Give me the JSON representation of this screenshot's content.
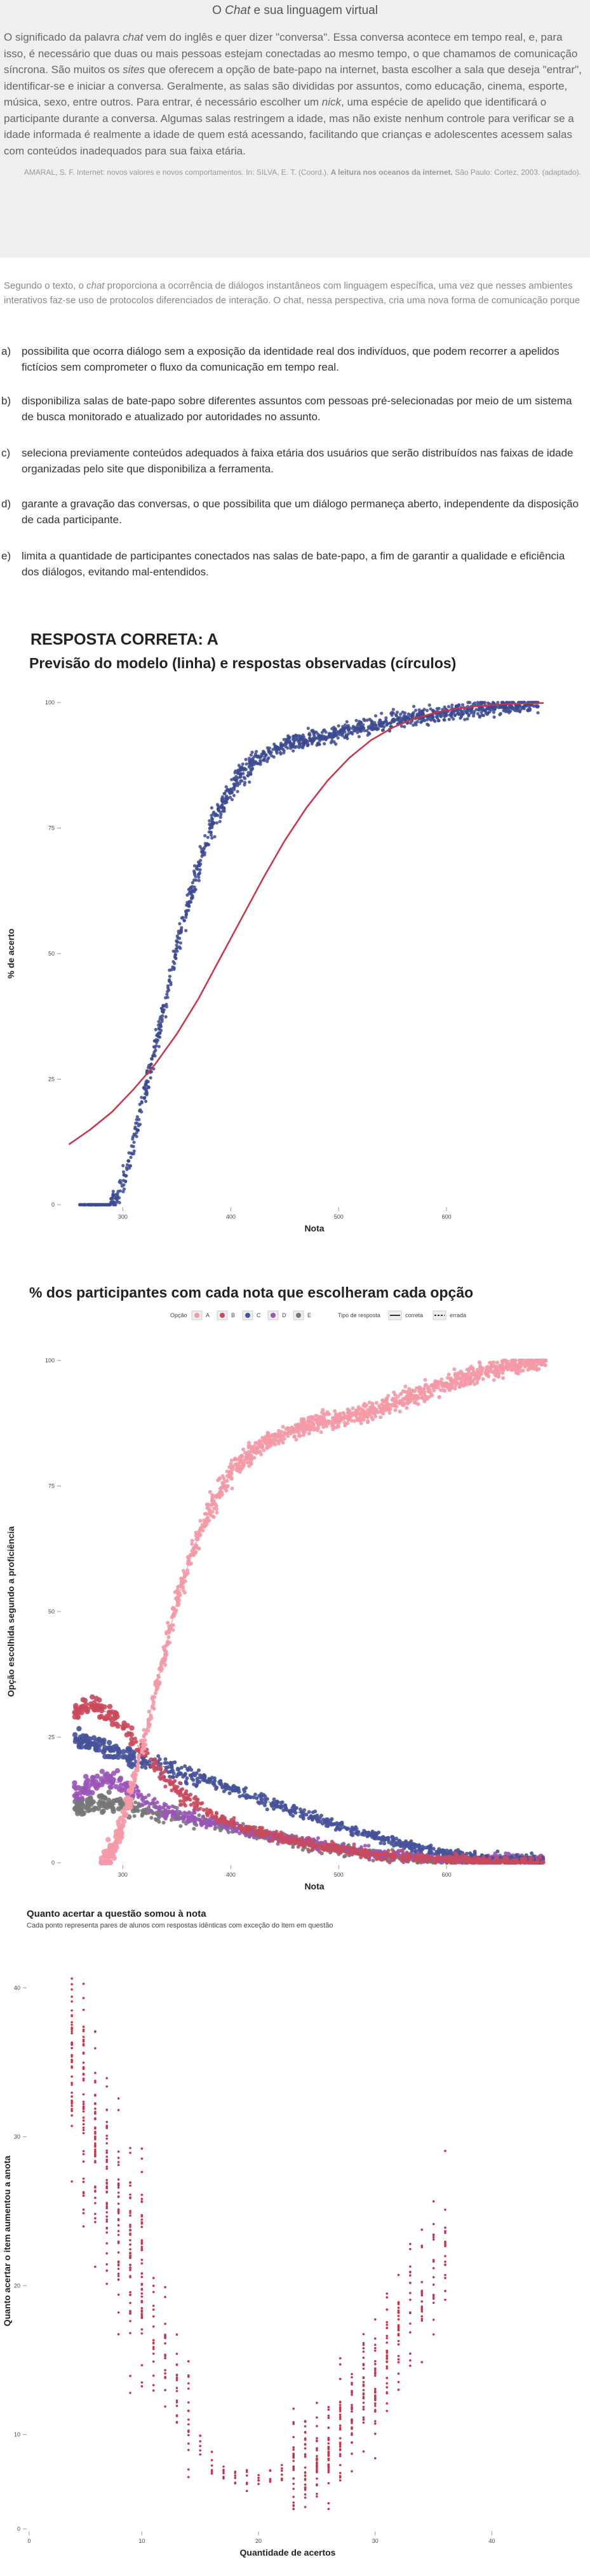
{
  "text_box": {
    "title_pre": "O ",
    "title_em": "Chat",
    "title_post": " e sua linguagem virtual",
    "paragraph": [
      {
        "t": "O significado da palavra "
      },
      {
        "t": "chat",
        "i": true
      },
      {
        "t": " vem do inglês e quer dizer \"conversa\". Essa conversa acontece em tempo real, e, para isso, é necessário que duas ou mais pessoas estejam conectadas ao mesmo tempo, o que chamamos de comunicação síncrona. São muitos os "
      },
      {
        "t": "sites",
        "i": true
      },
      {
        "t": " que oferecem a opção de bate-papo na internet, basta escolher a sala que deseja \"entrar\", identificar-se e iniciar a conversa. Geralmente, as salas são divididas por assuntos, como educação, cinema, esporte, música, sexo, entre outros. Para entrar, é necessário escolher um "
      },
      {
        "t": "nick",
        "i": true
      },
      {
        "t": ", uma espécie de apelido que identificará o participante durante a conversa. Algumas salas restringem a idade, mas não existe nenhum controle para verificar se a idade informada é realmente a idade de quem está acessando, facilitando que crianças e adolescentes acessem salas com conteúdos inadequados para sua faixa etária."
      }
    ],
    "source_pre": "AMARAL, S. F. Internet: novos valores e novos comportamentos. In: SILVA, E. T. (Coord.). ",
    "source_bold": "A leitura nos oceanos da internet.",
    "source_post": " São Paulo: Cortez, 2003. (adaptado)."
  },
  "question": {
    "stem_parts": [
      {
        "t": "Segundo o texto, o "
      },
      {
        "t": "chat",
        "i": true
      },
      {
        "t": " proporciona a ocorrência de diálogos instantâneos com linguagem específica, uma vez que nesses ambientes interativos faz-se uso de protocolos diferenciados de interação. O chat, nessa perspectiva, cria uma nova forma de comunicação porque"
      }
    ],
    "options": [
      {
        "letter": "a)",
        "text": "possibilita que ocorra diálogo sem a exposição da identidade real dos indivíduos, que podem recorrer a apelidos fictícios sem comprometer o fluxo da comunicação em tempo real."
      },
      {
        "letter": "b)",
        "text": "disponibiliza salas de bate-papo sobre diferentes assuntos com pessoas pré-selecionadas por meio de um sistema de busca monitorado e atualizado por autoridades no assunto."
      },
      {
        "letter": "c)",
        "text": "seleciona previamente conteúdos adequados à faixa etária dos usuários que serão distribuídos nas faixas de idade organizadas pelo site que disponibiliza a ferramenta."
      },
      {
        "letter": "d)",
        "text": "garante a gravação das conversas, o que possibilita que um diálogo permaneça aberto, independente da disposição de cada participante."
      },
      {
        "letter": "e)",
        "text": "limita a quantidade de participantes conectados nas salas de bate-papo, a fim de garantir a qualidade e eficiência dos diálogos, evitando mal-entendidos."
      }
    ],
    "answer": "RESPOSTA CORRETA: A"
  },
  "chart_data": [
    {
      "type": "scatter",
      "title": "Previsão do modelo (linha) e respostas observadas (círculos)",
      "xlabel": "Nota",
      "ylabel": "% de acerto",
      "xlim": [
        295,
        760
      ],
      "ylim": [
        0,
        100
      ],
      "xticks": [
        {
          "v": 350,
          "label": "300"
        },
        {
          "v": 450,
          "label": "400"
        },
        {
          "v": 550,
          "label": "500"
        },
        {
          "v": 650,
          "label": "600"
        }
      ],
      "yticks": [
        0,
        25,
        50,
        75,
        100
      ],
      "points_color": "#3b4a8f",
      "line_color": "#c9344a",
      "observed_curve": [
        [
          300,
          0
        ],
        [
          315,
          0
        ],
        [
          330,
          0
        ],
        [
          338,
          0
        ],
        [
          345,
          2
        ],
        [
          352,
          6
        ],
        [
          358,
          11
        ],
        [
          364,
          16
        ],
        [
          370,
          22
        ],
        [
          376,
          27
        ],
        [
          382,
          33
        ],
        [
          388,
          39
        ],
        [
          394,
          45
        ],
        [
          400,
          51
        ],
        [
          406,
          56
        ],
        [
          412,
          61
        ],
        [
          418,
          66
        ],
        [
          424,
          70
        ],
        [
          430,
          74
        ],
        [
          436,
          77
        ],
        [
          442,
          80
        ],
        [
          448,
          82
        ],
        [
          454,
          84
        ],
        [
          460,
          86
        ],
        [
          470,
          88
        ],
        [
          480,
          89.5
        ],
        [
          490,
          90.5
        ],
        [
          500,
          91.5
        ],
        [
          510,
          92
        ],
        [
          520,
          92.5
        ],
        [
          530,
          93
        ],
        [
          540,
          93.5
        ],
        [
          550,
          94
        ],
        [
          560,
          94.5
        ],
        [
          570,
          95
        ],
        [
          580,
          95.5
        ],
        [
          600,
          96.3
        ],
        [
          620,
          97
        ],
        [
          640,
          97.6
        ],
        [
          660,
          98.2
        ],
        [
          680,
          98.8
        ],
        [
          700,
          99.2
        ],
        [
          720,
          99.6
        ],
        [
          735,
          100
        ]
      ],
      "model_curve": [
        [
          300,
          12
        ],
        [
          320,
          15
        ],
        [
          340,
          18.5
        ],
        [
          360,
          23
        ],
        [
          380,
          28
        ],
        [
          400,
          34
        ],
        [
          420,
          41
        ],
        [
          440,
          49
        ],
        [
          460,
          57
        ],
        [
          480,
          65
        ],
        [
          500,
          72.5
        ],
        [
          520,
          79
        ],
        [
          540,
          84.5
        ],
        [
          560,
          89
        ],
        [
          580,
          92.5
        ],
        [
          600,
          95
        ],
        [
          620,
          96.8
        ],
        [
          640,
          98
        ],
        [
          660,
          98.8
        ],
        [
          680,
          99.3
        ],
        [
          700,
          99.6
        ],
        [
          720,
          99.8
        ],
        [
          740,
          99.9
        ]
      ]
    },
    {
      "type": "scatter",
      "title": "% dos participantes com cada nota que escolheram cada opção",
      "xlabel": "Nota",
      "ylabel": "Opção escolhida segundo a proficiência",
      "xlim": [
        295,
        760
      ],
      "ylim": [
        0,
        100
      ],
      "xticks": [
        {
          "v": 350,
          "label": "300"
        },
        {
          "v": 450,
          "label": "400"
        },
        {
          "v": 550,
          "label": "500"
        },
        {
          "v": 650,
          "label": "600"
        }
      ],
      "yticks": [
        0,
        25,
        50,
        75,
        100
      ],
      "legend_opcao_label": "Opção",
      "legend_tipo_label": "Tipo de resposta",
      "legend_tipo_items": [
        "correta",
        "errada"
      ],
      "legend_placement": "top",
      "series": [
        {
          "name": "A",
          "color": "#f49aa6",
          "curve": [
            [
              330,
              0
            ],
            [
              340,
              2
            ],
            [
              350,
              8
            ],
            [
              360,
              16
            ],
            [
              370,
              25
            ],
            [
              380,
              34
            ],
            [
              390,
              43
            ],
            [
              400,
              52
            ],
            [
              410,
              59
            ],
            [
              420,
              65
            ],
            [
              430,
              70
            ],
            [
              440,
              74
            ],
            [
              450,
              77.5
            ],
            [
              460,
              80
            ],
            [
              470,
              82
            ],
            [
              480,
              83.5
            ],
            [
              500,
              85.5
            ],
            [
              520,
              87
            ],
            [
              540,
              88
            ],
            [
              560,
              89
            ],
            [
              580,
              90
            ],
            [
              600,
              91.5
            ],
            [
              620,
              93
            ],
            [
              640,
              94.5
            ],
            [
              660,
              96
            ],
            [
              680,
              97.5
            ],
            [
              700,
              98.5
            ],
            [
              720,
              99.5
            ],
            [
              740,
              100
            ]
          ]
        },
        {
          "name": "B",
          "color": "#c94a5c",
          "curve": [
            [
              305,
              30
            ],
            [
              315,
              31
            ],
            [
              325,
              31
            ],
            [
              335,
              30
            ],
            [
              345,
              28
            ],
            [
              355,
              26
            ],
            [
              365,
              23
            ],
            [
              375,
              20.5
            ],
            [
              385,
              18
            ],
            [
              395,
              15.5
            ],
            [
              405,
              13.5
            ],
            [
              415,
              12
            ],
            [
              430,
              10
            ],
            [
              450,
              8
            ],
            [
              470,
              6.5
            ],
            [
              490,
              5.3
            ],
            [
              510,
              4.3
            ],
            [
              530,
              3.4
            ],
            [
              550,
              2.7
            ],
            [
              570,
              2.1
            ],
            [
              590,
              1.6
            ],
            [
              610,
              1.2
            ],
            [
              630,
              0.9
            ],
            [
              650,
              0.6
            ],
            [
              680,
              0.3
            ],
            [
              720,
              0.1
            ]
          ]
        },
        {
          "name": "C",
          "color": "#46529a",
          "curve": [
            [
              305,
              25
            ],
            [
              315,
              24
            ],
            [
              330,
              23
            ],
            [
              345,
              22
            ],
            [
              360,
              21
            ],
            [
              375,
              20
            ],
            [
              390,
              19
            ],
            [
              405,
              18
            ],
            [
              420,
              17
            ],
            [
              440,
              15.5
            ],
            [
              460,
              14
            ],
            [
              480,
              12.5
            ],
            [
              500,
              11
            ],
            [
              520,
              9.5
            ],
            [
              540,
              8
            ],
            [
              560,
              6.8
            ],
            [
              580,
              5.5
            ],
            [
              600,
              4.3
            ],
            [
              620,
              3.3
            ],
            [
              640,
              2.4
            ],
            [
              660,
              1.7
            ],
            [
              680,
              1.1
            ],
            [
              700,
              0.7
            ],
            [
              720,
              0.4
            ]
          ]
        },
        {
          "name": "D",
          "color": "#9a55b8",
          "curve": [
            [
              305,
              14
            ],
            [
              315,
              15
            ],
            [
              325,
              16
            ],
            [
              335,
              16.5
            ],
            [
              345,
              16
            ],
            [
              355,
              15
            ],
            [
              365,
              13.5
            ],
            [
              375,
              12
            ],
            [
              390,
              10.5
            ],
            [
              405,
              9.5
            ],
            [
              420,
              8.5
            ],
            [
              440,
              7.5
            ],
            [
              460,
              6.5
            ],
            [
              480,
              5.6
            ],
            [
              500,
              4.8
            ],
            [
              520,
              4
            ],
            [
              540,
              3.3
            ],
            [
              560,
              2.6
            ],
            [
              580,
              2
            ],
            [
              600,
              1.5
            ],
            [
              630,
              1
            ],
            [
              660,
              0.6
            ]
          ]
        },
        {
          "name": "E",
          "color": "#777777",
          "curve": [
            [
              305,
              11
            ],
            [
              315,
              11.5
            ],
            [
              325,
              12
            ],
            [
              335,
              12
            ],
            [
              345,
              11.5
            ],
            [
              355,
              11
            ],
            [
              365,
              10.5
            ],
            [
              380,
              10
            ],
            [
              395,
              9.5
            ],
            [
              410,
              9
            ],
            [
              430,
              8
            ],
            [
              450,
              7
            ],
            [
              470,
              6
            ],
            [
              490,
              5
            ],
            [
              510,
              4.2
            ],
            [
              530,
              3.4
            ],
            [
              550,
              2.7
            ],
            [
              570,
              2.1
            ],
            [
              590,
              1.6
            ],
            [
              610,
              1.2
            ],
            [
              640,
              0.7
            ],
            [
              670,
              0.4
            ]
          ]
        }
      ]
    },
    {
      "type": "scatter",
      "title": "Quanto acertar a questão somou à nota",
      "subtitle": "Cada ponto representa pares de alunos com respostas idênticas com exceção do item em questão",
      "xlabel": "Quantidade de acertos",
      "ylabel": "Quanto acertar o item aumentou a anota",
      "xlim": [
        1,
        44
      ],
      "ylim": [
        4,
        42
      ],
      "xticks": [
        0,
        10,
        20,
        30,
        40
      ],
      "yticks": [
        0,
        10,
        20,
        30,
        40
      ],
      "points_color": "#c9344a",
      "trend_curve": [
        [
          4,
          35
        ],
        [
          5,
          32
        ],
        [
          6,
          29
        ],
        [
          7,
          27
        ],
        [
          8,
          24
        ],
        [
          9,
          22
        ],
        [
          10,
          20
        ],
        [
          11,
          17.5
        ],
        [
          12,
          15
        ],
        [
          13,
          13
        ],
        [
          14,
          11
        ],
        [
          15,
          9.5
        ],
        [
          16,
          8
        ],
        [
          17,
          7.5
        ],
        [
          18,
          7.2
        ],
        [
          19,
          7
        ],
        [
          20,
          7
        ],
        [
          21,
          7.1
        ],
        [
          22,
          7.3
        ],
        [
          23,
          7.6
        ],
        [
          24,
          8
        ],
        [
          25,
          8.5
        ],
        [
          26,
          9.3
        ],
        [
          27,
          10.2
        ],
        [
          28,
          11.3
        ],
        [
          29,
          12.6
        ],
        [
          30,
          14
        ],
        [
          31,
          15.5
        ],
        [
          32,
          17
        ],
        [
          33,
          18.5
        ],
        [
          34,
          20
        ],
        [
          35,
          21.5
        ],
        [
          36,
          22.5
        ]
      ]
    }
  ]
}
